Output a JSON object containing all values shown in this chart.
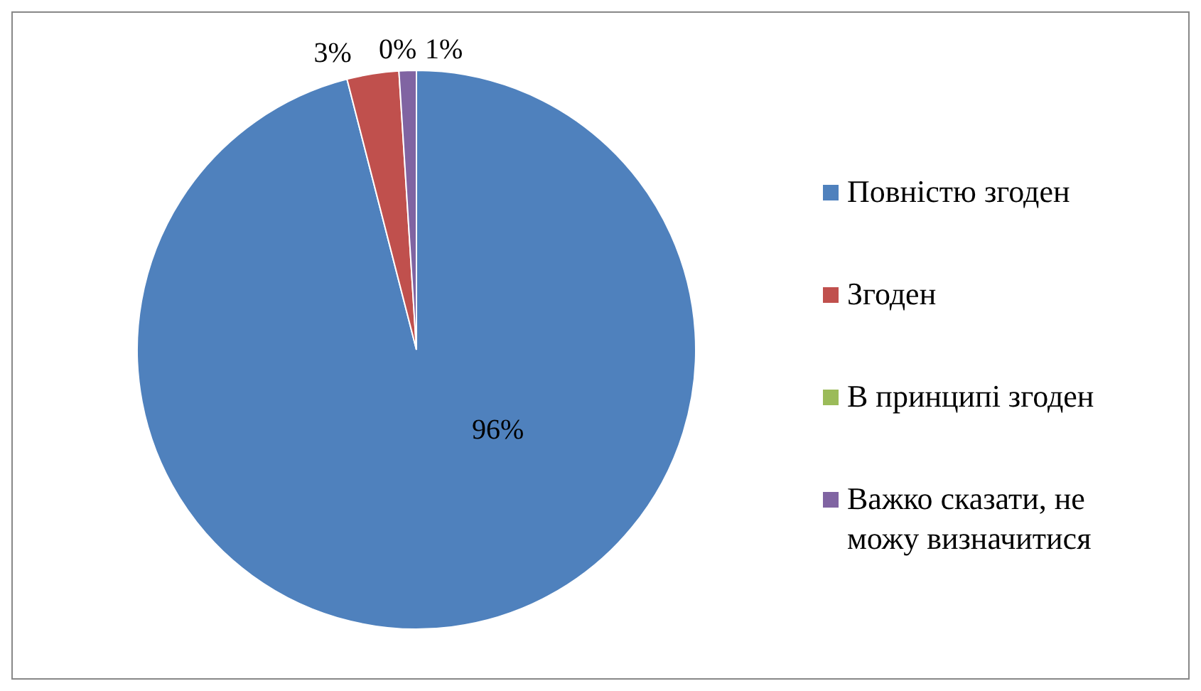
{
  "chart_data": {
    "type": "pie",
    "categories": [
      "Повністю згоден",
      "Згоден",
      "В принципі згоден",
      "Важко сказати, не можу визначитися"
    ],
    "values": [
      96,
      3,
      0,
      1
    ],
    "colors": [
      "#4f81bd",
      "#c0504d",
      "#9bbb59",
      "#8064a2"
    ],
    "value_labels": [
      "96%",
      "3%",
      "0%",
      "1%"
    ],
    "legend": "right"
  }
}
